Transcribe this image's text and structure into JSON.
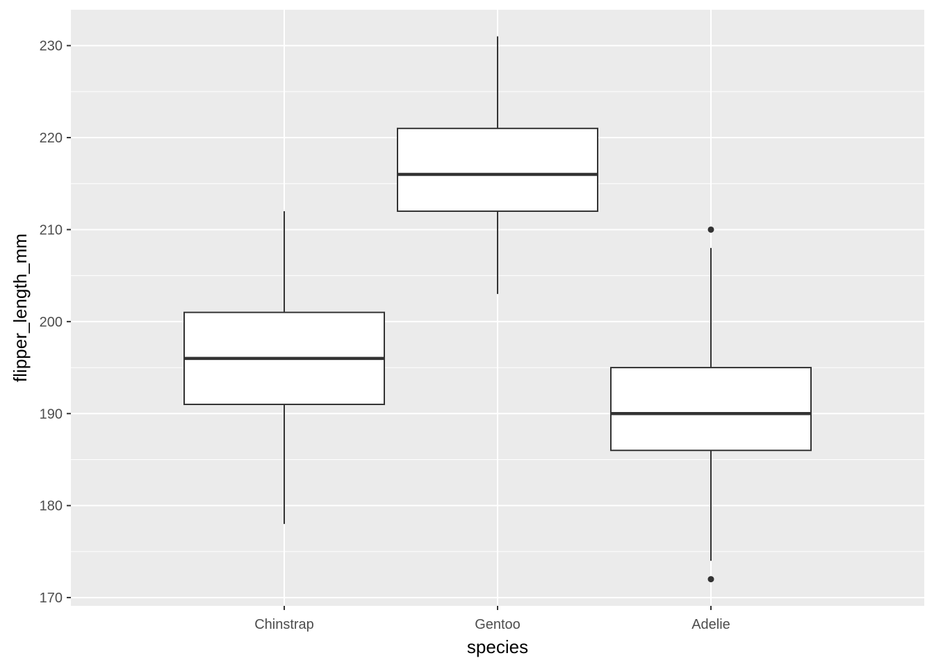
{
  "chart_data": {
    "type": "boxplot",
    "xlabel": "species",
    "ylabel": "flipper_length_mm",
    "ylim": [
      169.1,
      233.9
    ],
    "yticks": [
      170,
      180,
      190,
      200,
      210,
      220,
      230
    ],
    "categories": [
      "Chinstrap",
      "Gentoo",
      "Adelie"
    ],
    "boxes": [
      {
        "category": "Chinstrap",
        "whisker_low": 178,
        "q1": 191,
        "median": 196,
        "q3": 201,
        "whisker_high": 212,
        "outliers": []
      },
      {
        "category": "Gentoo",
        "whisker_low": 203,
        "q1": 212,
        "median": 216,
        "q3": 221,
        "whisker_high": 231,
        "outliers": []
      },
      {
        "category": "Adelie",
        "whisker_low": 174,
        "q1": 186,
        "median": 190,
        "q3": 195,
        "whisker_high": 208,
        "outliers": [
          210,
          172
        ]
      }
    ],
    "grid": true,
    "colors": {
      "panel": "#ebebeb",
      "grid": "#ffffff",
      "box_fill": "#ffffff",
      "box_line": "#333333",
      "tick_text": "#4d4d4d"
    }
  }
}
